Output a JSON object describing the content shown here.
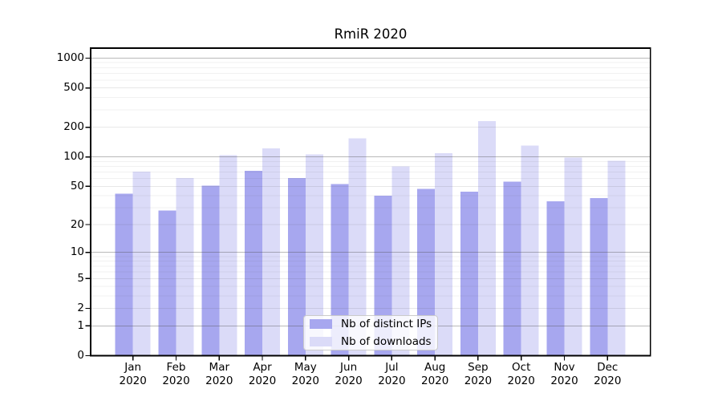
{
  "background": "#ffffff",
  "chart_data": {
    "type": "bar",
    "title": "RmiR 2020",
    "xlabel": "",
    "ylabel": "",
    "y_scale": "symlog",
    "ylim": [
      0,
      1260
    ],
    "y_ticks": [
      1000,
      500,
      200,
      100,
      50,
      20,
      10,
      5,
      2,
      1,
      0
    ],
    "grid": {
      "major": true,
      "minor": true
    },
    "legend_position": "lower center",
    "categories": [
      "Jan 2020",
      "Feb 2020",
      "Mar 2020",
      "Apr 2020",
      "May 2020",
      "Jun 2020",
      "Jul 2020",
      "Aug 2020",
      "Sep 2020",
      "Oct 2020",
      "Nov 2020",
      "Dec 2020"
    ],
    "series": [
      {
        "name": "Nb of distinct IPs",
        "color": "#a7a7ef",
        "values": [
          42,
          28,
          51,
          72,
          61,
          53,
          40,
          47,
          44,
          56,
          35,
          38
        ]
      },
      {
        "name": "Nb of downloads",
        "color": "#dbdbf8",
        "values": [
          71,
          61,
          104,
          122,
          106,
          155,
          80,
          109,
          230,
          130,
          98,
          91
        ]
      }
    ]
  }
}
